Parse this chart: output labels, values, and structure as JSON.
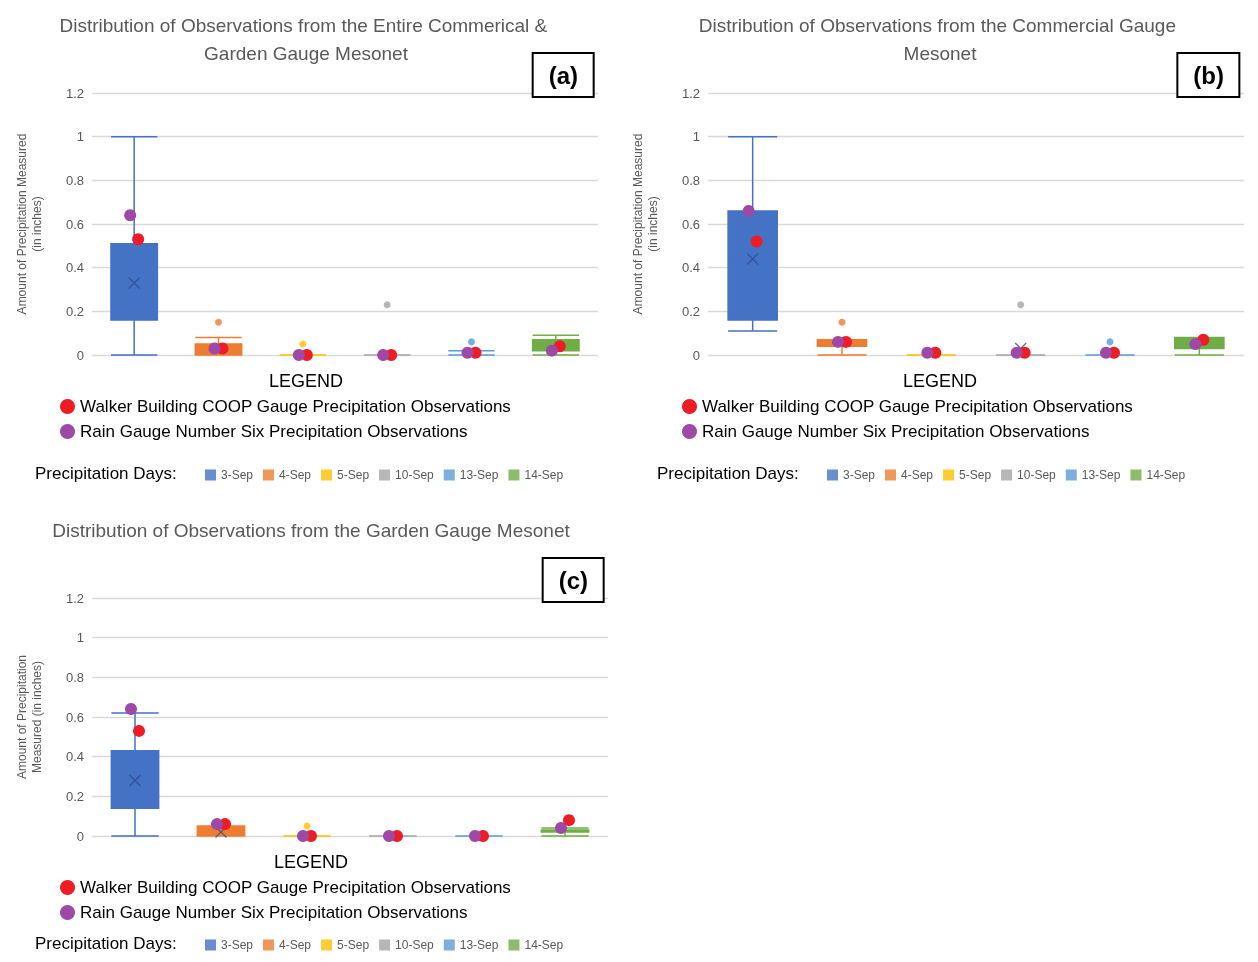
{
  "chart_data": [
    {
      "type": "box",
      "title": "Distribution of Observations from the Entire Commerical & Garden Gauge Mesonet",
      "ylabel": "Amount of Precipitation Measured\n(in inches)",
      "legend_title": "Precipitation Days:",
      "annotations": [
        "(a)",
        "LEGEND"
      ],
      "categories": [
        null,
        null,
        null,
        null,
        null,
        null
      ],
      "ylim": [
        0,
        1.2
      ],
      "yticks": [
        0,
        0.2,
        0.4,
        0.6,
        0.8,
        1,
        1.2
      ],
      "grid": "y",
      "legend": "bottom",
      "tick_labels": "y",
      "marker": "circle",
      "series": [
        {
          "name": "3-Sep",
          "color": "#4472c4",
          "boxes": [
            {
              "low": 0,
              "q1": 0.16,
              "median": 0.27,
              "q3": 0.51,
              "high": 1,
              "mean": 0.33
            },
            null,
            null,
            null,
            null,
            null
          ]
        },
        {
          "name": "4-Sep",
          "color": "#ed7d31",
          "boxes": [
            null,
            {
              "low": 0,
              "q1": 0,
              "median": 0.04,
              "q3": 0.05,
              "high": 0.08,
              "outliers": [
                0.15
              ]
            },
            null,
            null,
            null,
            null
          ]
        },
        {
          "name": "5-Sep",
          "color": "#ffc000",
          "boxes": [
            null,
            null,
            {
              "low": 0,
              "q1": 0,
              "median": 0,
              "q3": 0,
              "high": 0,
              "outliers": [
                0.05
              ]
            },
            null,
            null,
            null
          ]
        },
        {
          "name": "10-Sep",
          "color": "#a5a5a5",
          "boxes": [
            null,
            null,
            null,
            {
              "low": 0,
              "q1": 0,
              "median": 0,
              "q3": 0,
              "high": 0,
              "outliers": [
                0.23
              ]
            },
            null,
            null
          ]
        },
        {
          "name": "13-Sep",
          "color": "#5b9bd5",
          "boxes": [
            null,
            null,
            null,
            null,
            {
              "low": 0,
              "q1": 0,
              "median": 0,
              "q3": 0,
              "high": 0.02,
              "outliers": [
                0.06
              ]
            },
            null
          ]
        },
        {
          "name": "14-Sep",
          "color": "#70ad47",
          "boxes": [
            null,
            null,
            null,
            null,
            null,
            {
              "low": 0,
              "q1": 0.02,
              "median": 0.06,
              "q3": 0.07,
              "high": 0.09
            }
          ]
        },
        {
          "type": "scatter",
          "name": "Walker Building COOP Gauge Precipitation Observations",
          "color": "#ee1c25",
          "values": [
            0.53,
            0.03,
            0,
            0,
            0.01,
            0.04
          ]
        },
        {
          "type": "scatter",
          "name": "Rain Gauge Number Six Precipitation Observations",
          "color": "#9e48a8",
          "values": [
            0.64,
            0.03,
            0,
            0,
            0.01,
            0.02
          ]
        }
      ]
    },
    {
      "type": "box",
      "title": "Distribution of Observations from the Commercial Gauge Mesonet",
      "ylabel": "Amount of Precipitation Measured\n(in inches)",
      "legend_title": "Precipitation Days:",
      "annotations": [
        "(b)",
        "LEGEND"
      ],
      "categories": [
        null,
        null,
        null,
        null,
        null,
        null
      ],
      "ylim": [
        0,
        1.2
      ],
      "yticks": [
        0,
        0.2,
        0.4,
        0.6,
        0.8,
        1,
        1.2
      ],
      "grid": "y",
      "legend": "bottom",
      "tick_labels": "y",
      "marker": "circle",
      "series": [
        {
          "name": "3-Sep",
          "color": "#4472c4",
          "boxes": [
            {
              "low": 0.11,
              "q1": 0.16,
              "median": 0.43,
              "q3": 0.66,
              "high": 1,
              "mean": 0.44
            },
            null,
            null,
            null,
            null,
            null
          ]
        },
        {
          "name": "4-Sep",
          "color": "#ed7d31",
          "boxes": [
            null,
            {
              "low": 0,
              "q1": 0.04,
              "median": 0.06,
              "q3": 0.07,
              "high": 0.07,
              "outliers": [
                0.15
              ]
            },
            null,
            null,
            null,
            null
          ]
        },
        {
          "name": "5-Sep",
          "color": "#ffc000",
          "boxes": [
            null,
            null,
            {
              "low": 0,
              "q1": 0,
              "median": 0,
              "q3": 0,
              "high": 0
            },
            null,
            null,
            null
          ]
        },
        {
          "name": "10-Sep",
          "color": "#a5a5a5",
          "boxes": [
            null,
            null,
            null,
            {
              "low": 0,
              "q1": 0,
              "median": 0,
              "q3": 0,
              "high": 0,
              "mean": 0.03,
              "outliers": [
                0.23
              ]
            },
            null,
            null
          ]
        },
        {
          "name": "13-Sep",
          "color": "#5b9bd5",
          "boxes": [
            null,
            null,
            null,
            null,
            {
              "low": 0,
              "q1": 0,
              "median": 0,
              "q3": 0,
              "high": 0,
              "outliers": [
                0.06
              ]
            },
            null
          ]
        },
        {
          "name": "14-Sep",
          "color": "#70ad47",
          "boxes": [
            null,
            null,
            null,
            null,
            null,
            {
              "low": 0,
              "q1": 0.03,
              "median": 0.07,
              "q3": 0.08,
              "high": 0.08
            }
          ]
        },
        {
          "type": "scatter",
          "name": "Walker Building COOP Gauge Precipitation Observations",
          "color": "#ee1c25",
          "values": [
            0.52,
            0.06,
            0.01,
            0.01,
            0.01,
            0.07
          ]
        },
        {
          "type": "scatter",
          "name": "Rain Gauge Number Six Precipitation Observations",
          "color": "#9e48a8",
          "values": [
            0.66,
            0.06,
            0.01,
            0.01,
            0.01,
            0.05
          ]
        }
      ]
    },
    {
      "type": "box",
      "title": "Distribution of Observations from the Garden Gauge Mesonet",
      "ylabel": "Amount of Precipitation\nMeasured (in inches)",
      "legend_title": "Precipitation Days:",
      "annotations": [
        "(c)",
        "LEGEND"
      ],
      "categories": [
        null,
        null,
        null,
        null,
        null,
        null
      ],
      "ylim": [
        0,
        1.2
      ],
      "yticks": [
        0,
        0.2,
        0.4,
        0.6,
        0.8,
        1,
        1.2
      ],
      "grid": "y",
      "legend": "bottom",
      "tick_labels": "y",
      "marker": "circle",
      "series": [
        {
          "name": "3-Sep",
          "color": "#4472c4",
          "boxes": [
            {
              "low": 0,
              "q1": 0.14,
              "median": 0.25,
              "q3": 0.43,
              "high": 0.62,
              "mean": 0.28
            },
            null,
            null,
            null,
            null,
            null
          ]
        },
        {
          "name": "4-Sep",
          "color": "#ed7d31",
          "boxes": [
            null,
            {
              "low": 0,
              "q1": 0,
              "median": 0.02,
              "q3": 0.05,
              "high": 0.05,
              "mean": 0.02
            },
            null,
            null,
            null,
            null
          ]
        },
        {
          "name": "5-Sep",
          "color": "#ffc000",
          "boxes": [
            null,
            null,
            {
              "low": 0,
              "q1": 0,
              "median": 0,
              "q3": 0,
              "high": 0,
              "outliers": [
                0.05
              ]
            },
            null,
            null,
            null
          ]
        },
        {
          "name": "10-Sep",
          "color": "#a5a5a5",
          "boxes": [
            null,
            null,
            null,
            {
              "low": 0,
              "q1": 0,
              "median": 0,
              "q3": 0,
              "high": 0
            },
            null,
            null
          ]
        },
        {
          "name": "13-Sep",
          "color": "#5b9bd5",
          "boxes": [
            null,
            null,
            null,
            null,
            {
              "low": 0,
              "q1": 0,
              "median": 0,
              "q3": 0,
              "high": 0
            },
            null
          ]
        },
        {
          "name": "14-Sep",
          "color": "#70ad47",
          "boxes": [
            null,
            null,
            null,
            null,
            null,
            {
              "low": 0,
              "q1": 0.02,
              "median": 0.03,
              "q3": 0.03,
              "high": 0.04
            }
          ]
        },
        {
          "type": "scatter",
          "name": "Walker Building COOP Gauge Precipitation Observations",
          "color": "#ee1c25",
          "values": [
            0.53,
            0.06,
            0,
            0,
            0,
            0.08
          ]
        },
        {
          "type": "scatter",
          "name": "Rain Gauge Number Six Precipitation Observations",
          "color": "#9e48a8",
          "values": [
            0.64,
            0.06,
            0,
            0,
            0,
            0.04
          ]
        }
      ]
    }
  ]
}
